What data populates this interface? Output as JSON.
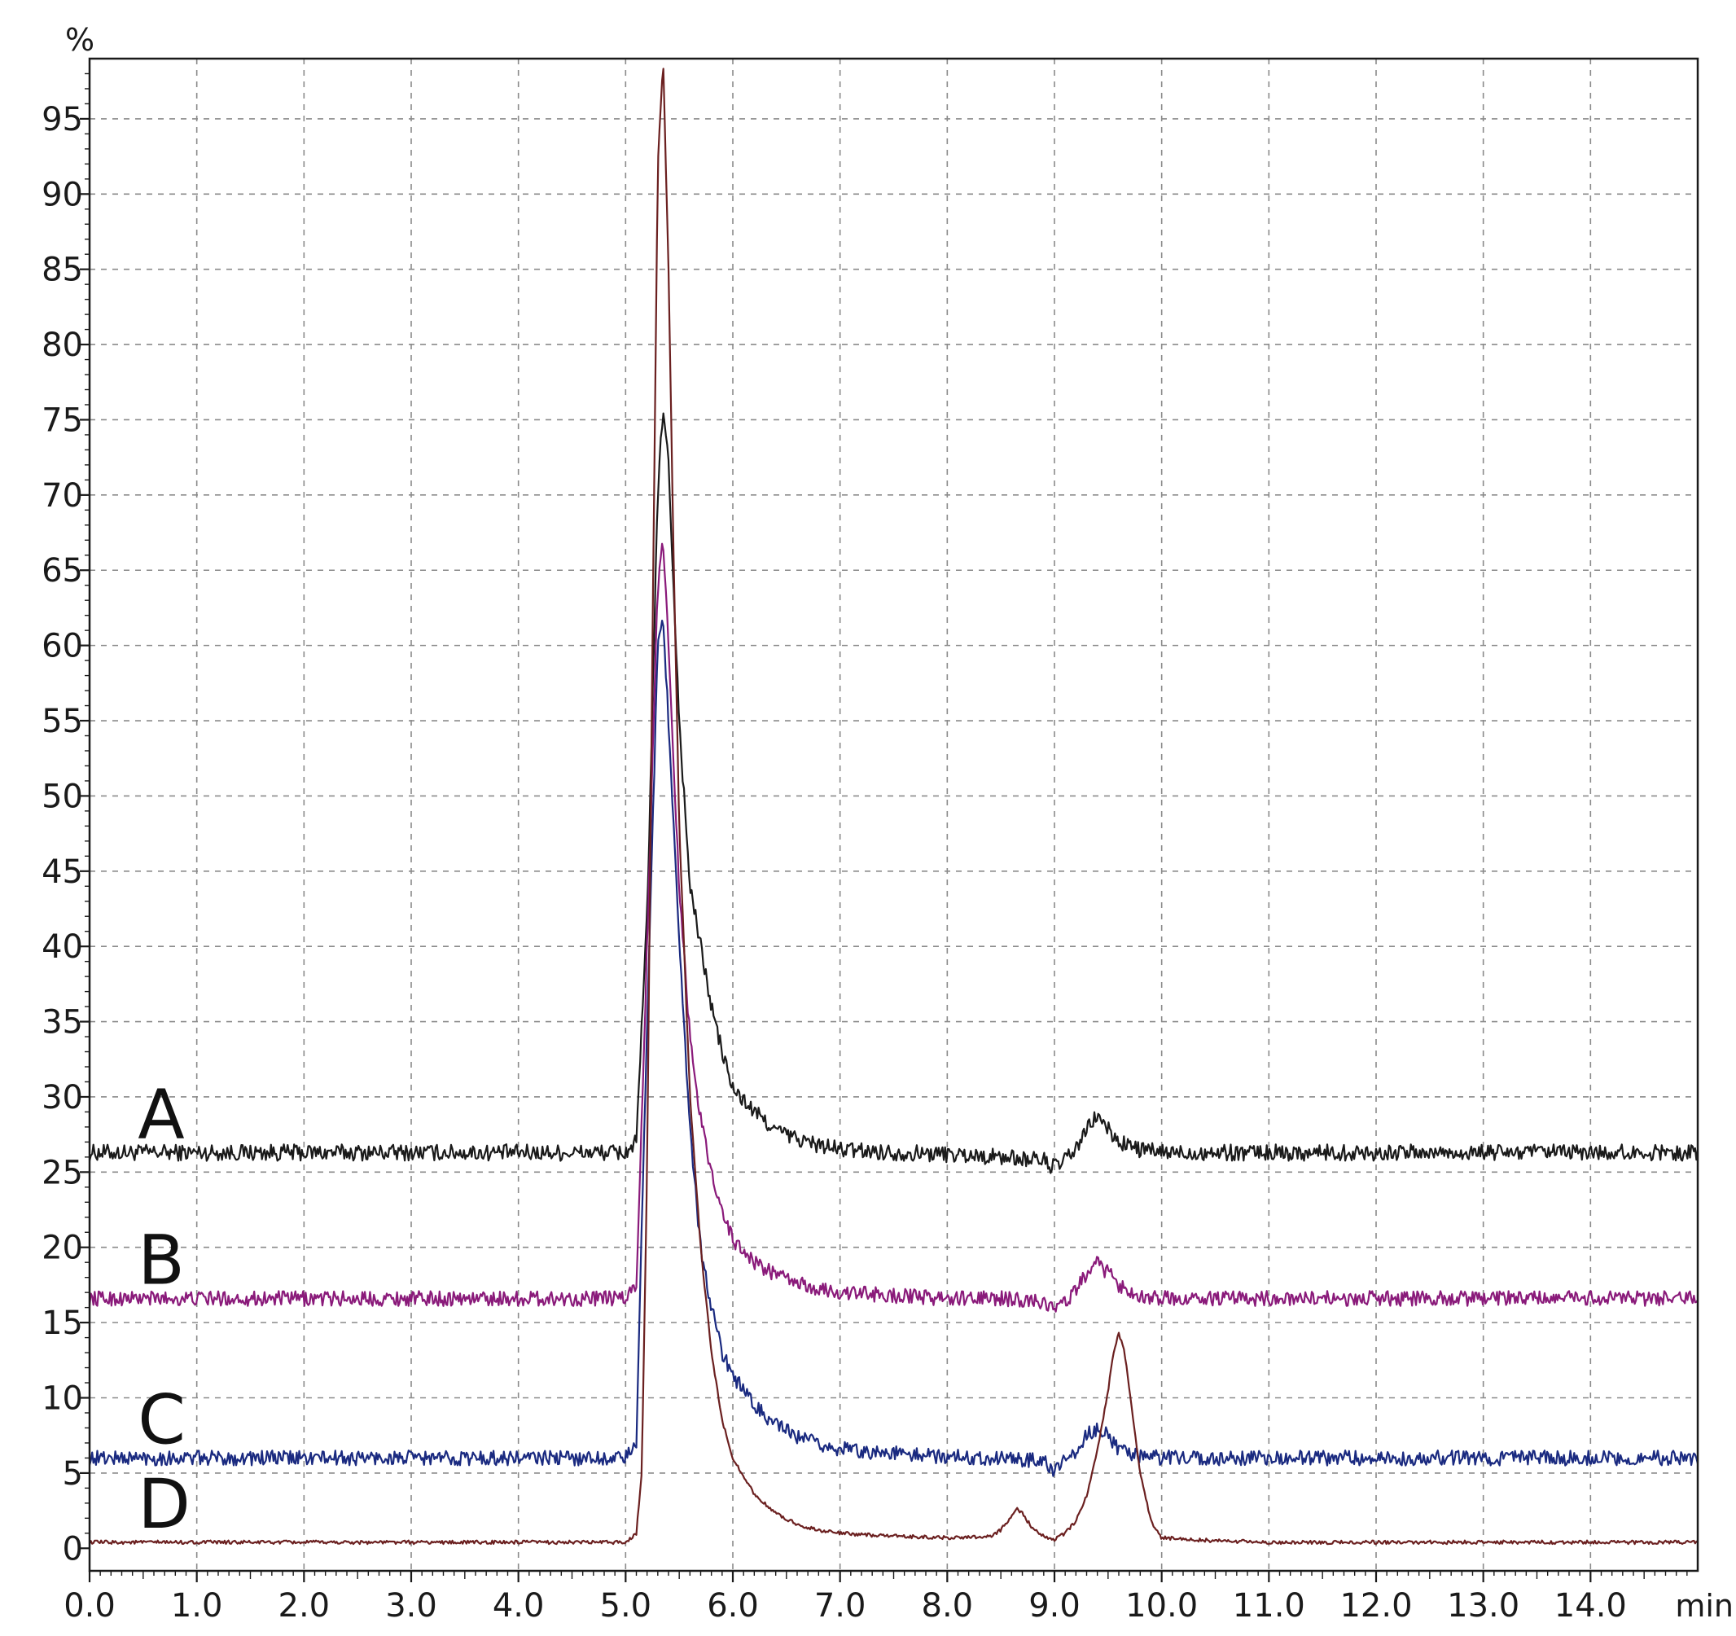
{
  "chart_data": {
    "type": "line",
    "title": "",
    "xlabel": "min",
    "ylabel": "%",
    "xlim": [
      0.0,
      15.0
    ],
    "ylim": [
      -1.5,
      99.0
    ],
    "grid": true,
    "grid_style": "dashed",
    "x_ticks": [
      "0.0",
      "1.0",
      "2.0",
      "3.0",
      "4.0",
      "5.0",
      "6.0",
      "7.0",
      "8.0",
      "9.0",
      "10.0",
      "11.0",
      "12.0",
      "13.0",
      "14.0"
    ],
    "y_ticks": [
      "0",
      "5",
      "10",
      "15",
      "20",
      "25",
      "30",
      "35",
      "40",
      "45",
      "50",
      "55",
      "60",
      "65",
      "70",
      "75",
      "80",
      "85",
      "90",
      "95"
    ],
    "series": [
      {
        "name": "A",
        "color": "#1a1a1a",
        "x": [
          0.0,
          5.0,
          5.1,
          5.2,
          5.3,
          5.35,
          5.4,
          5.5,
          5.6,
          5.7,
          5.8,
          5.9,
          6.0,
          6.2,
          6.4,
          6.6,
          6.8,
          7.0,
          7.5,
          8.0,
          8.5,
          8.9,
          9.0,
          9.1,
          9.2,
          9.3,
          9.4,
          9.5,
          9.6,
          9.8,
          10.0,
          10.5,
          11.0,
          12.0,
          13.0,
          14.0,
          15.0
        ],
        "values": [
          26.3,
          26.3,
          27.0,
          42.0,
          70.0,
          76.0,
          72.0,
          55.0,
          44.0,
          40.0,
          36.0,
          33.0,
          30.5,
          29.0,
          27.8,
          27.2,
          26.8,
          26.5,
          26.3,
          26.2,
          26.0,
          25.8,
          25.3,
          25.8,
          26.5,
          27.8,
          28.8,
          27.8,
          27.0,
          26.5,
          26.3,
          26.3,
          26.3,
          26.3,
          26.3,
          26.3,
          26.3
        ]
      },
      {
        "name": "B",
        "color": "#8a1a7a",
        "x": [
          0.0,
          5.0,
          5.1,
          5.2,
          5.3,
          5.35,
          5.4,
          5.5,
          5.6,
          5.7,
          5.8,
          5.9,
          6.0,
          6.2,
          6.4,
          6.6,
          6.8,
          7.0,
          7.5,
          8.0,
          8.5,
          8.9,
          9.0,
          9.1,
          9.2,
          9.3,
          9.4,
          9.5,
          9.6,
          9.8,
          10.0,
          10.5,
          11.0,
          12.0,
          13.0,
          14.0,
          15.0
        ],
        "values": [
          16.6,
          16.6,
          17.5,
          40.0,
          64.0,
          67.0,
          60.0,
          44.0,
          34.0,
          28.5,
          25.0,
          22.5,
          20.5,
          19.0,
          18.2,
          17.6,
          17.2,
          17.0,
          16.8,
          16.6,
          16.6,
          16.4,
          15.8,
          16.4,
          17.2,
          18.2,
          18.9,
          18.3,
          17.5,
          16.8,
          16.6,
          16.6,
          16.6,
          16.6,
          16.6,
          16.6,
          16.6
        ]
      },
      {
        "name": "C",
        "color": "#1a2a80",
        "x": [
          0.0,
          5.0,
          5.1,
          5.2,
          5.3,
          5.35,
          5.4,
          5.5,
          5.6,
          5.7,
          5.8,
          5.9,
          6.0,
          6.2,
          6.4,
          6.6,
          6.8,
          7.0,
          7.5,
          8.0,
          8.5,
          8.9,
          9.0,
          9.1,
          9.2,
          9.3,
          9.4,
          9.5,
          9.6,
          9.8,
          10.0,
          10.5,
          11.0,
          12.0,
          13.0,
          14.0,
          15.0
        ],
        "values": [
          6.0,
          6.0,
          7.0,
          35.0,
          60.0,
          62.0,
          55.0,
          40.0,
          28.0,
          20.0,
          16.0,
          13.0,
          11.5,
          9.5,
          8.2,
          7.4,
          6.9,
          6.6,
          6.3,
          6.1,
          6.0,
          5.8,
          5.2,
          5.8,
          6.5,
          7.5,
          8.0,
          7.5,
          6.5,
          6.1,
          6.0,
          6.0,
          6.0,
          6.0,
          6.0,
          6.0,
          6.0
        ]
      },
      {
        "name": "D",
        "color": "#6b2020",
        "x": [
          0.0,
          5.0,
          5.1,
          5.15,
          5.2,
          5.25,
          5.3,
          5.35,
          5.4,
          5.45,
          5.5,
          5.6,
          5.7,
          5.8,
          5.9,
          6.0,
          6.2,
          6.4,
          6.6,
          6.8,
          7.0,
          7.5,
          8.0,
          8.4,
          8.5,
          8.6,
          8.65,
          8.7,
          8.8,
          8.9,
          9.0,
          9.1,
          9.2,
          9.3,
          9.4,
          9.5,
          9.55,
          9.6,
          9.65,
          9.7,
          9.8,
          9.9,
          10.0,
          10.5,
          11.0,
          12.0,
          13.0,
          14.0,
          15.0
        ],
        "values": [
          0.4,
          0.4,
          1.0,
          5.0,
          25.0,
          60.0,
          92.0,
          99.0,
          85.0,
          65.0,
          48.0,
          30.0,
          20.0,
          13.0,
          8.5,
          6.0,
          3.6,
          2.3,
          1.6,
          1.2,
          1.0,
          0.8,
          0.7,
          0.8,
          1.2,
          2.2,
          2.7,
          2.3,
          1.3,
          0.8,
          0.6,
          1.0,
          1.8,
          3.5,
          6.5,
          10.5,
          13.0,
          14.3,
          13.2,
          10.5,
          5.0,
          1.8,
          0.7,
          0.5,
          0.4,
          0.4,
          0.4,
          0.4,
          0.4
        ]
      }
    ]
  }
}
